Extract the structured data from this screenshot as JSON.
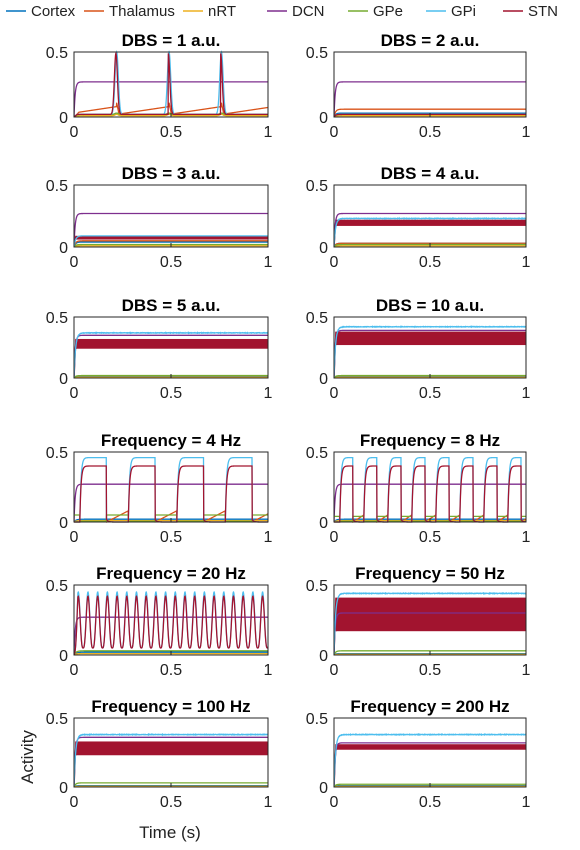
{
  "chart_data": {
    "type": "line",
    "legend": {
      "placement": "top",
      "entries": [
        {
          "name": "Cortex",
          "color": "#0072BD"
        },
        {
          "name": "Thalamus",
          "color": "#D95319"
        },
        {
          "name": "nRT",
          "color": "#EDB120"
        },
        {
          "name": "DCN",
          "color": "#7E2F8E"
        },
        {
          "name": "GPe",
          "color": "#77AC30"
        },
        {
          "name": "GPi",
          "color": "#4DBEEE"
        },
        {
          "name": "STN",
          "color": "#A2142F"
        }
      ]
    },
    "xlabel": "Time (s)",
    "ylabel": "Activity",
    "xlim": [
      0,
      1
    ],
    "ylim": [
      0,
      0.5
    ],
    "xticks": [
      {
        "v": 0,
        "label": "0"
      },
      {
        "v": 0.5,
        "label": "0.5"
      },
      {
        "v": 1,
        "label": "1"
      }
    ],
    "yticks": [
      {
        "v": 0,
        "label": "0"
      },
      {
        "v": 0.5,
        "label": "0.5"
      }
    ],
    "panels": [
      {
        "title": "DBS = 1 a.u.",
        "mode": "burst",
        "period": 0.27,
        "first": 0.22,
        "levels": {
          "DCN": 0.27,
          "Thalamus": 0.06,
          "GPi": 0.5,
          "STN": 0.5,
          "Cortex": 0.02,
          "GPe": 0.02,
          "nRT": 0.01
        }
      },
      {
        "title": "DBS = 2 a.u.",
        "levels": {
          "DCN": 0.27,
          "Thalamus": 0.06,
          "Cortex": 0.03,
          "GPi": 0.02,
          "STN": 0.02,
          "GPe": 0.02,
          "nRT": 0.01
        }
      },
      {
        "title": "DBS = 3 a.u.",
        "band": {
          "lo": 0.06,
          "hi": 0.09
        },
        "levels": {
          "DCN": 0.27,
          "GPi": 0.09,
          "Thalamus": 0.05,
          "Cortex": 0.04,
          "GPe": 0.02,
          "nRT": 0.01
        }
      },
      {
        "title": "DBS = 4 a.u.",
        "band": {
          "lo": 0.17,
          "hi": 0.22
        },
        "levels": {
          "DCN": 0.27,
          "GPi": 0.23,
          "Thalamus": 0.03,
          "Cortex": 0.03,
          "GPe": 0.02,
          "nRT": 0.01
        }
      },
      {
        "title": "DBS = 5 a.u.",
        "band": {
          "lo": 0.24,
          "hi": 0.32
        },
        "levels": {
          "GPi": 0.37,
          "DCN": 0.35,
          "GPe": 0.02,
          "Cortex": 0.01,
          "nRT": 0.005,
          "Thalamus": 0.005
        }
      },
      {
        "title": "DBS = 10 a.u.",
        "band": {
          "lo": 0.27,
          "hi": 0.38
        },
        "levels": {
          "GPi": 0.42,
          "DCN": 0.39,
          "GPe": 0.02,
          "Cortex": 0.01,
          "nRT": 0.005,
          "Thalamus": 0.005
        }
      },
      {
        "title": "Frequency = 4 Hz",
        "mode": "square",
        "freq": 4,
        "duty": 0.55,
        "levels": {
          "GPi": 0.46,
          "STN": 0.4,
          "DCN": 0.27,
          "Thalamus": 0.08,
          "GPe": 0.05,
          "Cortex": 0.02,
          "nRT": 0.01
        }
      },
      {
        "title": "Frequency = 8 Hz",
        "mode": "square",
        "freq": 8,
        "duty": 0.55,
        "levels": {
          "GPi": 0.46,
          "STN": 0.4,
          "DCN": 0.27,
          "Thalamus": 0.05,
          "GPe": 0.04,
          "Cortex": 0.02,
          "nRT": 0.01
        }
      },
      {
        "title": "Frequency = 20 Hz",
        "mode": "osc",
        "freq": 20,
        "levels": {
          "GPi": 0.45,
          "STN": 0.42,
          "DCN": 0.27,
          "GPe": 0.03,
          "Cortex": 0.02,
          "nRT": 0.01
        }
      },
      {
        "title": "Frequency = 50 Hz",
        "band": {
          "lo": 0.17,
          "hi": 0.41
        },
        "levels": {
          "GPi": 0.44,
          "DCN": 0.3,
          "GPe": 0.03,
          "Cortex": 0.01,
          "nRT": 0.005
        }
      },
      {
        "title": "Frequency = 100 Hz",
        "band": {
          "lo": 0.23,
          "hi": 0.33
        },
        "levels": {
          "GPi": 0.38,
          "DCN": 0.36,
          "GPe": 0.03,
          "Cortex": 0.01,
          "nRT": 0.005
        }
      },
      {
        "title": "Frequency = 200 Hz",
        "band": {
          "lo": 0.27,
          "hi": 0.31
        },
        "levels": {
          "GPi": 0.38,
          "DCN": 0.32,
          "GPe": 0.02,
          "Cortex": 0.01,
          "nRT": 0.005
        }
      }
    ]
  }
}
